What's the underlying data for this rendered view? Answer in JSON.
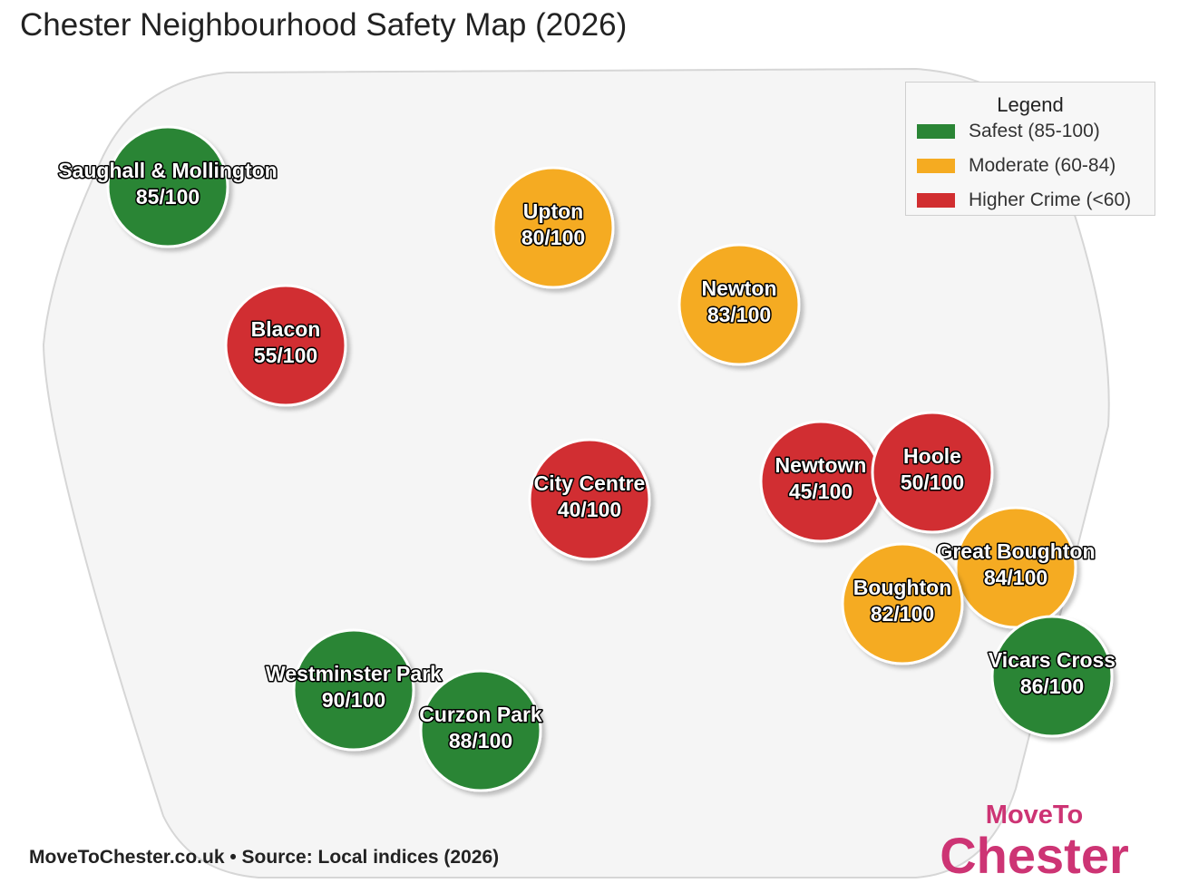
{
  "title": "Chester Neighbourhood Safety Map (2026)",
  "legend": {
    "title": "Legend",
    "items": [
      {
        "label": "Safest (85-100)",
        "color": "#2a8535"
      },
      {
        "label": "Moderate (60-84)",
        "color": "#f5ab21"
      },
      {
        "label": "Higher Crime (<60)",
        "color": "#d12e30"
      }
    ]
  },
  "colors": {
    "safest": "#2a8535",
    "moderate": "#f5ab21",
    "higher_crime": "#d12e30",
    "region_fill": "#f5f5f5",
    "region_stroke": "#d6d6d6",
    "brand": "#cd3474"
  },
  "neighbourhoods": [
    {
      "name": "Saughall & Mollington",
      "score_label": "85/100",
      "score": 85,
      "category": "safest"
    },
    {
      "name": "Upton",
      "score_label": "80/100",
      "score": 80,
      "category": "moderate"
    },
    {
      "name": "Newton",
      "score_label": "83/100",
      "score": 83,
      "category": "moderate"
    },
    {
      "name": "Blacon",
      "score_label": "55/100",
      "score": 55,
      "category": "higher_crime"
    },
    {
      "name": "City Centre",
      "score_label": "40/100",
      "score": 40,
      "category": "higher_crime"
    },
    {
      "name": "Newtown",
      "score_label": "45/100",
      "score": 45,
      "category": "higher_crime"
    },
    {
      "name": "Hoole",
      "score_label": "50/100",
      "score": 50,
      "category": "higher_crime"
    },
    {
      "name": "Great Boughton",
      "score_label": "84/100",
      "score": 84,
      "category": "moderate"
    },
    {
      "name": "Boughton",
      "score_label": "82/100",
      "score": 82,
      "category": "moderate"
    },
    {
      "name": "Vicars Cross",
      "score_label": "86/100",
      "score": 86,
      "category": "safest"
    },
    {
      "name": "Westminster Park",
      "score_label": "90/100",
      "score": 90,
      "category": "safest"
    },
    {
      "name": "Curzon Park",
      "score_label": "88/100",
      "score": 88,
      "category": "safest"
    }
  ],
  "footer": {
    "source": "MoveToChester.co.uk • Source: Local indices (2026)"
  },
  "brand": {
    "line1": "MoveTo",
    "line2": "Chester"
  }
}
